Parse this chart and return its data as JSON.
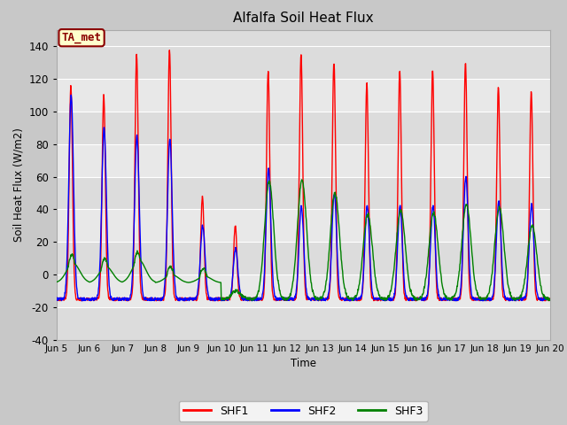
{
  "title": "Alfalfa Soil Heat Flux",
  "ylabel": "Soil Heat Flux (W/m2)",
  "xlabel": "Time",
  "ylim": [
    -40,
    150
  ],
  "yticks": [
    -40,
    -20,
    0,
    20,
    40,
    60,
    80,
    100,
    120,
    140
  ],
  "xtick_labels": [
    "Jun 5",
    "Jun 6",
    "Jun 7",
    "Jun 8",
    "Jun 9",
    "Jun 10",
    "Jun 11",
    "Jun 12",
    "Jun 13",
    "Jun 14",
    "Jun 15",
    "Jun 16",
    "Jun 17",
    "Jun 18",
    "Jun 19",
    "Jun 20"
  ],
  "shf1_peaks": [
    116,
    110,
    135,
    138,
    48,
    30,
    125,
    135,
    130,
    117,
    125,
    126,
    130,
    116,
    112
  ],
  "shf2_peaks": [
    110,
    90,
    85,
    83,
    30,
    16,
    65,
    42,
    50,
    42,
    42,
    42,
    60,
    45,
    43
  ],
  "shf3_peaks": [
    12,
    10,
    14,
    5,
    4,
    -10,
    57,
    58,
    50,
    37,
    39,
    38,
    43,
    41,
    30
  ],
  "shf1_night": -15,
  "shf2_night": -15,
  "shf3_night": -15,
  "band_colors": [
    "#dcdcdc",
    "#e8e8e8"
  ],
  "grid_color": "#ffffff",
  "fig_bg": "#c8c8c8",
  "annotation_text": "TA_met",
  "annotation_facecolor": "#ffffcc",
  "annotation_edgecolor": "#8b0000",
  "annotation_textcolor": "#8b0000"
}
